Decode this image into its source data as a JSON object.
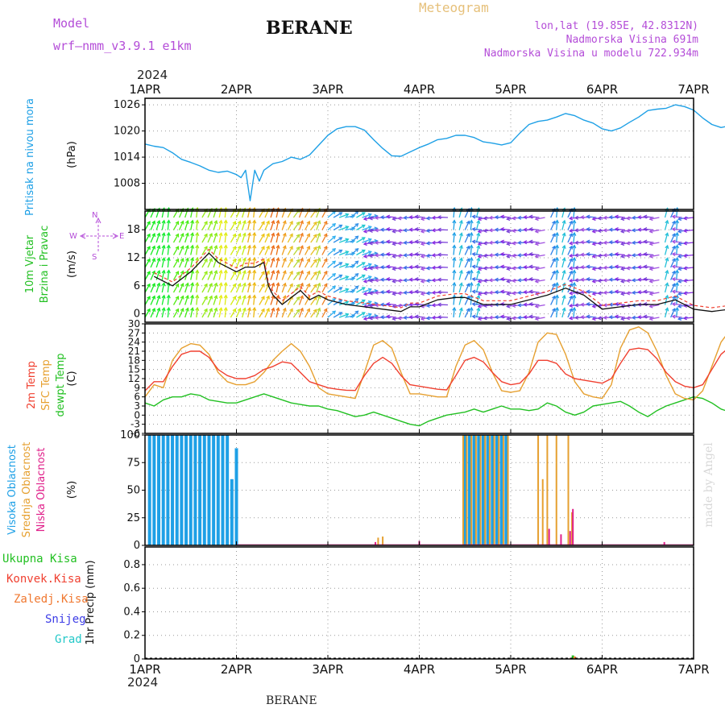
{
  "header": {
    "model_label": "Model",
    "model_name": "wrf–nmm_v3.9.1  e1km",
    "station": "BERANE",
    "title": "Meteogram",
    "lonlat": "lon,lat (19.85E, 42.8312N)",
    "elev": "Nadmorska Visina 691m",
    "elev_model": "Nadmorska Visina u modelu 722.934m",
    "year_top": "2024",
    "year_bottom": "2024",
    "footer_station": "BERANE",
    "credit": "made by Angel"
  },
  "colors": {
    "pressure": "#1ea0e6",
    "t2m": "#f04030",
    "sfc": "#e6a030",
    "dew": "#22c022",
    "high_cloud": "#1ea0e6",
    "mid_cloud": "#e6a030",
    "low_cloud": "#e0208a",
    "grid": "#999999",
    "purple": "#b44dd8"
  },
  "axis_labels": {
    "pressure_name": "Pritisak na nivou mora",
    "pressure_unit": "(hPa)",
    "wind_name1": "10m Vjetar",
    "wind_name2": "Brzina i Pravac",
    "wind_unit": "(m/s)",
    "temp_name1": "2m Temp",
    "temp_name2": "SFC Temp",
    "temp_name3": "dewpt Temp",
    "temp_unit": "(C)",
    "cloud_high": "Visoka Oblacnost",
    "cloud_mid": "Srednja Oblacnost",
    "cloud_low": "Niska Oblacnost",
    "cloud_unit": "(%)",
    "precip_total": "Ukupna Kisa",
    "precip_conv": "Konvek.Kisa",
    "precip_frz": "Zaledj.Kisa",
    "precip_snow": "Snijeg",
    "precip_hail": "Grad",
    "precip_unit": "1hr Precip (mm)",
    "compass_n": "N",
    "compass_w": "W",
    "compass_e": "E",
    "compass_s": "S"
  },
  "chart_data": [
    {
      "type": "line",
      "x_ticks": [
        "1APR",
        "2APR",
        "3APR",
        "4APR",
        "5APR",
        "6APR",
        "7APR"
      ],
      "y_ticks": [
        "1008",
        "1014",
        "1020",
        "1026"
      ],
      "ylabel": "(hPa)",
      "ylim": [
        1002,
        1027.5
      ],
      "series": [
        {
          "name": "Pritisak na nivou mora",
          "x": [
            0,
            0.1,
            0.2,
            0.3,
            0.4,
            0.5,
            0.6,
            0.7,
            0.8,
            0.9,
            1.0,
            1.05,
            1.1,
            1.15,
            1.2,
            1.25,
            1.3,
            1.4,
            1.5,
            1.6,
            1.7,
            1.8,
            2.0,
            2.1,
            2.2,
            2.3,
            2.4,
            2.5,
            2.6,
            2.7,
            2.8,
            2.9,
            3.0,
            3.1,
            3.2,
            3.3,
            3.4,
            3.5,
            3.6,
            3.7,
            3.8,
            3.9,
            4.0,
            4.1,
            4.2,
            4.3,
            4.4,
            4.5,
            4.6,
            4.7,
            4.8,
            4.9,
            5.0,
            5.1,
            5.2,
            5.3,
            5.4,
            5.5,
            5.6,
            5.7,
            5.8,
            5.9,
            6.0,
            6.1,
            6.2,
            6.3,
            6.4,
            6.5,
            6.6,
            6.7,
            6.8,
            6.9,
            7.0
          ],
          "values": [
            1017,
            1016.5,
            1016.2,
            1015,
            1013.5,
            1012.8,
            1012,
            1011,
            1010.5,
            1010.8,
            1010,
            1009.3,
            1011,
            1004,
            1011,
            1008.5,
            1011,
            1012.5,
            1013,
            1014,
            1013.5,
            1014.5,
            1019,
            1020.5,
            1021,
            1021,
            1020.2,
            1018,
            1016,
            1014.3,
            1014.2,
            1015.2,
            1016.2,
            1017,
            1018,
            1018.3,
            1019,
            1019,
            1018.5,
            1017.5,
            1017.2,
            1016.8,
            1017.3,
            1019.5,
            1021.5,
            1022.2,
            1022.5,
            1023.2,
            1024,
            1023.5,
            1022.5,
            1021.8,
            1020.5,
            1020,
            1020.7,
            1022,
            1023.2,
            1024.7,
            1025,
            1025.2,
            1026,
            1025.6,
            1024.8,
            1023,
            1021.5,
            1020.8,
            1021.2,
            1022.2,
            1023.1,
            1023.5,
            1023.5,
            1023.3,
            1023.3
          ]
        }
      ]
    },
    {
      "type": "line",
      "x_ticks": [
        "1APR",
        "2APR",
        "3APR",
        "4APR",
        "5APR",
        "6APR",
        "7APR"
      ],
      "y_ticks": [
        "0",
        "6",
        "12",
        "18"
      ],
      "ylabel": "(m/s)",
      "ylim": [
        -1.8,
        22
      ],
      "series": [
        {
          "name": "10m Vjetar",
          "x": [
            0.1,
            0.3,
            0.5,
            0.7,
            0.8,
            0.9,
            1.0,
            1.1,
            1.2,
            1.3,
            1.35,
            1.4,
            1.5,
            1.6,
            1.7,
            1.8,
            1.9,
            2.0,
            2.2,
            2.4,
            2.6,
            2.8,
            2.9,
            3.0,
            3.2,
            3.4,
            3.5,
            3.7,
            3.9,
            4.0,
            4.2,
            4.4,
            4.6,
            4.8,
            5.0,
            5.2,
            5.4,
            5.6,
            5.8,
            6.0,
            6.2,
            6.4,
            6.6,
            6.8,
            7.0
          ],
          "values": [
            8,
            6,
            9,
            13,
            11,
            10,
            9,
            10,
            10,
            11,
            6,
            4,
            2,
            3.5,
            5,
            3,
            4,
            3,
            2,
            1.5,
            1,
            0.5,
            1.5,
            1.5,
            3,
            3.5,
            3.5,
            2,
            2,
            2,
            3,
            4,
            5.5,
            4,
            1,
            1.5,
            2,
            2,
            3,
            1,
            0.5,
            1,
            1.5,
            1.5,
            1.5
          ]
        }
      ],
      "wind_arrows": "direction arrows (unlabeled), colored by speed"
    },
    {
      "type": "line",
      "x_ticks": [
        "1APR",
        "2APR",
        "3APR",
        "4APR",
        "5APR",
        "6APR",
        "7APR"
      ],
      "y_ticks": [
        "-6",
        "-3",
        "0",
        "3",
        "6",
        "9",
        "12",
        "15",
        "18",
        "21",
        "24",
        "27",
        "30"
      ],
      "ylabel": "(C)",
      "ylim": [
        -6,
        30
      ],
      "series": [
        {
          "name": "2m Temp",
          "x": [
            0,
            0.1,
            0.2,
            0.3,
            0.4,
            0.5,
            0.6,
            0.7,
            0.8,
            0.9,
            1.0,
            1.1,
            1.2,
            1.3,
            1.4,
            1.5,
            1.6,
            1.7,
            1.8,
            1.9,
            2.0,
            2.1,
            2.2,
            2.3,
            2.4,
            2.5,
            2.6,
            2.7,
            2.8,
            2.9,
            3.0,
            3.1,
            3.2,
            3.3,
            3.4,
            3.5,
            3.6,
            3.7,
            3.8,
            3.9,
            4.0,
            4.1,
            4.2,
            4.3,
            4.4,
            4.5,
            4.6,
            4.7,
            4.8,
            4.9,
            5.0,
            5.1,
            5.2,
            5.3,
            5.4,
            5.5,
            5.6,
            5.7,
            5.8,
            5.9,
            6.0,
            6.1,
            6.2,
            6.3,
            6.4,
            6.5,
            6.6,
            6.7,
            6.8,
            6.9,
            7.0
          ],
          "values": [
            8,
            11,
            11,
            16,
            20,
            21,
            21,
            19,
            15,
            13,
            12,
            12,
            13,
            15,
            16,
            17.5,
            17,
            14,
            11,
            10,
            9,
            8.5,
            8.2,
            8.1,
            13,
            17,
            19,
            17,
            13,
            10,
            9.5,
            9,
            8.5,
            8.3,
            13,
            18,
            19,
            17.5,
            14,
            11,
            10,
            10.5,
            13.5,
            18,
            18,
            17,
            13.5,
            12,
            11.5,
            11,
            10.5,
            12,
            17,
            21.5,
            22,
            21.5,
            18.5,
            14,
            11,
            9.5,
            9,
            10,
            15,
            20,
            22.5,
            23,
            22,
            18,
            16,
            15.5,
            15
          ]
        },
        {
          "name": "SFC Temp",
          "x": [
            0,
            0.1,
            0.2,
            0.3,
            0.4,
            0.5,
            0.6,
            0.7,
            0.8,
            0.9,
            1.0,
            1.1,
            1.2,
            1.3,
            1.4,
            1.5,
            1.6,
            1.7,
            1.8,
            1.9,
            2.0,
            2.1,
            2.2,
            2.3,
            2.4,
            2.5,
            2.6,
            2.7,
            2.8,
            2.9,
            3.0,
            3.1,
            3.2,
            3.3,
            3.4,
            3.5,
            3.6,
            3.7,
            3.8,
            3.9,
            4.0,
            4.1,
            4.2,
            4.3,
            4.4,
            4.5,
            4.6,
            4.7,
            4.8,
            4.9,
            5.0,
            5.1,
            5.2,
            5.3,
            5.4,
            5.5,
            5.6,
            5.7,
            5.8,
            5.9,
            6.0,
            6.1,
            6.2,
            6.3,
            6.4,
            6.5,
            6.6,
            6.7,
            6.8,
            6.9,
            7.0
          ],
          "values": [
            6,
            10,
            9,
            18,
            22,
            23.5,
            23,
            20,
            14,
            11,
            10,
            10,
            11,
            14,
            18,
            21,
            23.5,
            21,
            16,
            9,
            7,
            6.5,
            6,
            5.5,
            14,
            23,
            24.5,
            22,
            14,
            7,
            7,
            6.5,
            6,
            6,
            16,
            23,
            24.5,
            21.5,
            14,
            8,
            7.5,
            8,
            14,
            24,
            27,
            26.5,
            20,
            11,
            7,
            6,
            5.5,
            10,
            22,
            28,
            29,
            27,
            21,
            13,
            7,
            5.5,
            5,
            8,
            16,
            24,
            28,
            29,
            27,
            21,
            16,
            13,
            11
          ]
        },
        {
          "name": "dewpt Temp",
          "x": [
            0,
            0.1,
            0.2,
            0.3,
            0.4,
            0.5,
            0.6,
            0.7,
            0.8,
            0.9,
            1.0,
            1.1,
            1.2,
            1.3,
            1.4,
            1.5,
            1.6,
            1.7,
            1.8,
            1.9,
            2.0,
            2.1,
            2.2,
            2.3,
            2.4,
            2.5,
            2.6,
            2.7,
            2.8,
            2.9,
            3.0,
            3.1,
            3.2,
            3.3,
            3.4,
            3.5,
            3.6,
            3.7,
            3.8,
            3.9,
            4.0,
            4.1,
            4.2,
            4.3,
            4.4,
            4.5,
            4.6,
            4.7,
            4.8,
            4.9,
            5.0,
            5.1,
            5.2,
            5.3,
            5.4,
            5.5,
            5.6,
            5.7,
            5.8,
            5.9,
            6.0,
            6.1,
            6.2,
            6.3,
            6.4,
            6.5,
            6.6,
            6.7,
            6.8,
            6.9,
            7.0
          ],
          "values": [
            4,
            3,
            5,
            6,
            6,
            7,
            6.5,
            5,
            4.5,
            4,
            4,
            5,
            6,
            7,
            6,
            5,
            4,
            3.5,
            3,
            3,
            2,
            1.5,
            0.5,
            -0.5,
            0,
            1,
            0,
            -1,
            -2,
            -3,
            -3.5,
            -2,
            -1,
            0,
            0.5,
            1,
            2,
            1,
            2,
            3,
            2,
            2,
            1.5,
            2,
            4,
            3,
            1,
            0,
            1,
            3,
            3.5,
            4,
            4.5,
            3,
            1,
            -0.5,
            1.5,
            3,
            4,
            5,
            6,
            5.5,
            4,
            2,
            1,
            0,
            2,
            5,
            4,
            3,
            4
          ]
        }
      ]
    },
    {
      "type": "bar",
      "x_ticks": [
        "1APR",
        "2APR",
        "3APR",
        "4APR",
        "5APR",
        "6APR",
        "7APR"
      ],
      "y_ticks": [
        "0",
        "25",
        "50",
        "75",
        "100"
      ],
      "ylabel": "(%)",
      "ylim": [
        0,
        100
      ],
      "series": [
        {
          "name": "Visoka Oblacnost",
          "x": [
            0.05,
            0.1,
            0.15,
            0.2,
            0.25,
            0.3,
            0.35,
            0.4,
            0.45,
            0.5,
            0.55,
            0.6,
            0.65,
            0.7,
            0.75,
            0.8,
            0.85,
            0.9,
            0.95,
            1.0,
            3.5,
            3.55,
            3.6,
            3.65,
            3.7,
            3.75,
            3.8,
            3.85,
            3.9,
            3.95
          ],
          "values": [
            100,
            100,
            100,
            100,
            100,
            100,
            100,
            100,
            100,
            100,
            100,
            100,
            100,
            100,
            100,
            100,
            100,
            100,
            60,
            88,
            100,
            100,
            100,
            100,
            100,
            100,
            100,
            100,
            100,
            100
          ]
        },
        {
          "name": "Srednja Oblacnost",
          "x": [
            2.55,
            2.6,
            3.48,
            3.52,
            3.57,
            3.62,
            3.67,
            3.72,
            3.77,
            3.82,
            3.87,
            3.92,
            3.97,
            4.3,
            4.35,
            4.4,
            4.5,
            4.63,
            4.67
          ],
          "values": [
            7,
            8,
            100,
            100,
            100,
            100,
            100,
            100,
            100,
            100,
            100,
            100,
            100,
            100,
            60,
            100,
            100,
            100,
            30
          ]
        },
        {
          "name": "Niska Oblacnost",
          "x": [
            2.52,
            3.0,
            4.42,
            4.55,
            4.65,
            4.68,
            5.68
          ],
          "values": [
            3,
            4,
            15,
            10,
            13,
            33,
            3
          ]
        }
      ]
    },
    {
      "type": "bar",
      "x_ticks": [
        "1APR",
        "2APR",
        "3APR",
        "4APR",
        "5APR",
        "6APR",
        "7APR"
      ],
      "y_ticks": [
        "0",
        "0.2",
        "0.4",
        "0.6",
        "0.8"
      ],
      "ylabel": "1hr Precip (mm)",
      "ylim": [
        0,
        0.95
      ],
      "series": [
        {
          "name": "Ukupna Kisa",
          "x": [
            4.68
          ],
          "values": [
            0.03
          ]
        },
        {
          "name": "Konvek.Kisa",
          "x": [
            4.66
          ],
          "values": [
            0.01
          ]
        },
        {
          "name": "Zaledj.Kisa",
          "x": [
            4.7
          ],
          "values": [
            0.02
          ]
        }
      ]
    }
  ]
}
